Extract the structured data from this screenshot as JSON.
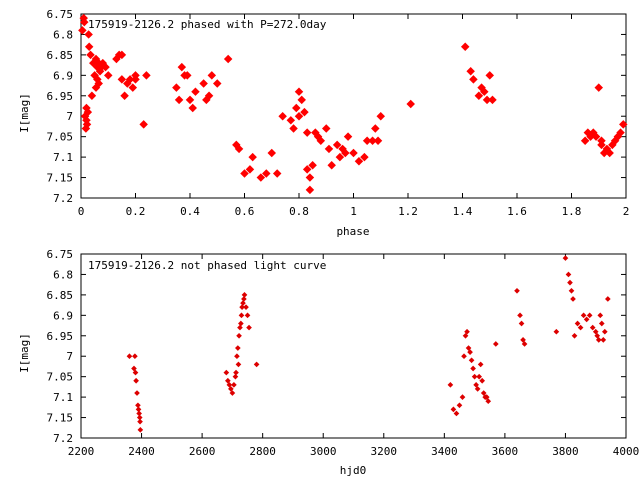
{
  "chart_data": [
    {
      "type": "scatter",
      "title": "175919-2126.2 phased with P=272.0day",
      "xlabel": "phase",
      "ylabel": "I[mag]",
      "xlim": [
        0,
        2
      ],
      "ylim": [
        6.75,
        7.2
      ],
      "y_inverted": true,
      "xticks": [
        "0",
        "0.2",
        "0.4",
        "0.6",
        "0.8",
        "1",
        "1.2",
        "1.4",
        "1.6",
        "1.8",
        "2"
      ],
      "yticks": [
        "6.75",
        "6.8",
        "6.85",
        "6.9",
        "6.95",
        "7",
        "7.05",
        "7.1",
        "7.15",
        "7.2"
      ],
      "grid": false,
      "marker_color": "#ff0000",
      "series": [
        {
          "x": [
            0.005,
            0.01,
            0.012,
            0.015,
            0.018,
            0.02,
            0.02,
            0.022,
            0.025,
            0.028,
            0.03,
            0.035,
            0.04,
            0.045,
            0.05,
            0.055,
            0.055,
            0.06,
            0.06,
            0.065,
            0.065,
            0.07,
            0.075,
            0.08,
            0.09,
            0.1,
            0.13,
            0.14,
            0.15,
            0.15,
            0.16,
            0.17,
            0.18,
            0.19,
            0.2,
            0.2,
            0.23,
            0.24,
            0.35,
            0.36,
            0.37,
            0.38,
            0.39,
            0.4,
            0.41,
            0.42,
            0.45,
            0.46,
            0.47,
            0.48,
            0.5,
            0.54,
            0.57,
            0.58,
            0.6,
            0.62,
            0.63,
            0.66,
            0.68,
            0.7,
            0.72,
            0.74,
            0.77,
            0.78,
            0.79,
            0.8,
            0.8,
            0.81,
            0.82,
            0.83,
            0.83,
            0.84,
            0.84,
            0.85,
            0.86,
            0.87,
            0.88,
            0.9,
            0.91,
            0.92,
            0.94,
            0.95,
            0.96,
            0.97,
            0.98,
            1.0,
            1.02,
            1.04,
            1.05,
            1.07,
            1.08,
            1.09,
            1.1,
            1.21,
            1.41,
            1.43,
            1.44,
            1.46,
            1.47,
            1.48,
            1.49,
            1.5,
            1.51,
            1.85,
            1.86,
            1.87,
            1.88,
            1.89,
            1.9,
            1.91,
            1.91,
            1.92,
            1.93,
            1.94,
            1.95,
            1.96,
            1.97,
            1.98,
            1.99
          ],
          "y": [
            6.79,
            6.76,
            6.77,
            7.0,
            7.03,
            6.98,
            7.01,
            7.02,
            6.99,
            6.8,
            6.83,
            6.85,
            6.95,
            6.87,
            6.9,
            6.86,
            6.93,
            6.88,
            6.91,
            6.87,
            6.92,
            6.89,
            6.88,
            6.87,
            6.88,
            6.9,
            6.86,
            6.85,
            6.91,
            6.85,
            6.95,
            6.92,
            6.91,
            6.93,
            6.9,
            6.91,
            7.02,
            6.9,
            6.93,
            6.96,
            6.88,
            6.9,
            6.9,
            6.96,
            6.98,
            6.94,
            6.92,
            6.96,
            6.95,
            6.9,
            6.92,
            6.86,
            7.07,
            7.08,
            7.14,
            7.13,
            7.1,
            7.15,
            7.14,
            7.09,
            7.14,
            7.0,
            7.01,
            7.03,
            6.98,
            6.94,
            7.0,
            6.96,
            6.99,
            7.04,
            7.13,
            7.15,
            7.18,
            7.12,
            7.04,
            7.05,
            7.06,
            7.03,
            7.08,
            7.12,
            7.07,
            7.1,
            7.08,
            7.09,
            7.05,
            7.09,
            7.11,
            7.1,
            7.06,
            7.06,
            7.03,
            7.06,
            7.0,
            6.97,
            6.83,
            6.89,
            6.91,
            6.95,
            6.93,
            6.94,
            6.96,
            6.9,
            6.96,
            7.06,
            7.04,
            7.05,
            7.04,
            7.05,
            6.93,
            7.06,
            7.07,
            7.09,
            7.08,
            7.09,
            7.07,
            7.06,
            7.05,
            7.04,
            7.02
          ]
        }
      ]
    },
    {
      "type": "scatter",
      "title": "175919-2126.2 not phased light curve",
      "xlabel": "hjd0",
      "ylabel": "I[mag]",
      "xlim": [
        2200,
        4000
      ],
      "ylim": [
        6.75,
        7.2
      ],
      "y_inverted": true,
      "xticks": [
        "2200",
        "2400",
        "2600",
        "2800",
        "3000",
        "3200",
        "3400",
        "3600",
        "3800",
        "4000"
      ],
      "yticks": [
        "6.75",
        "6.8",
        "6.85",
        "6.9",
        "6.95",
        "7",
        "7.05",
        "7.1",
        "7.15",
        "7.2"
      ],
      "grid": false,
      "marker_color": "#dd0000",
      "series": [
        {
          "x": [
            2360,
            2375,
            2378,
            2380,
            2382,
            2385,
            2388,
            2390,
            2392,
            2394,
            2395,
            2396,
            2680,
            2685,
            2690,
            2695,
            2700,
            2705,
            2710,
            2712,
            2715,
            2718,
            2720,
            2722,
            2725,
            2728,
            2730,
            2732,
            2735,
            2738,
            2740,
            2745,
            2750,
            2755,
            2780,
            3420,
            3430,
            3440,
            3450,
            3460,
            3465,
            3470,
            3475,
            3480,
            3485,
            3490,
            3495,
            3500,
            3505,
            3510,
            3515,
            3520,
            3525,
            3530,
            3535,
            3540,
            3545,
            3570,
            3640,
            3650,
            3655,
            3660,
            3665,
            3770,
            3800,
            3810,
            3815,
            3820,
            3825,
            3830,
            3840,
            3850,
            3860,
            3870,
            3880,
            3890,
            3900,
            3905,
            3910,
            3915,
            3920,
            3925,
            3930,
            3940
          ],
          "y": [
            7.0,
            7.03,
            7.0,
            7.04,
            7.06,
            7.09,
            7.12,
            7.13,
            7.14,
            7.15,
            7.16,
            7.18,
            7.04,
            7.06,
            7.07,
            7.08,
            7.09,
            7.07,
            7.05,
            7.04,
            7.0,
            6.98,
            7.02,
            6.95,
            6.93,
            6.92,
            6.9,
            6.88,
            6.87,
            6.86,
            6.85,
            6.88,
            6.9,
            6.93,
            7.02,
            7.07,
            7.13,
            7.14,
            7.12,
            7.1,
            7.0,
            6.95,
            6.94,
            6.98,
            6.99,
            7.01,
            7.03,
            7.05,
            7.07,
            7.08,
            7.05,
            7.02,
            7.06,
            7.09,
            7.1,
            7.1,
            7.11,
            6.97,
            6.84,
            6.9,
            6.92,
            6.96,
            6.97,
            6.94,
            6.76,
            6.8,
            6.82,
            6.84,
            6.86,
            6.95,
            6.92,
            6.93,
            6.9,
            6.91,
            6.9,
            6.93,
            6.94,
            6.95,
            6.96,
            6.9,
            6.92,
            6.96,
            6.94,
            6.86
          ]
        }
      ]
    }
  ]
}
